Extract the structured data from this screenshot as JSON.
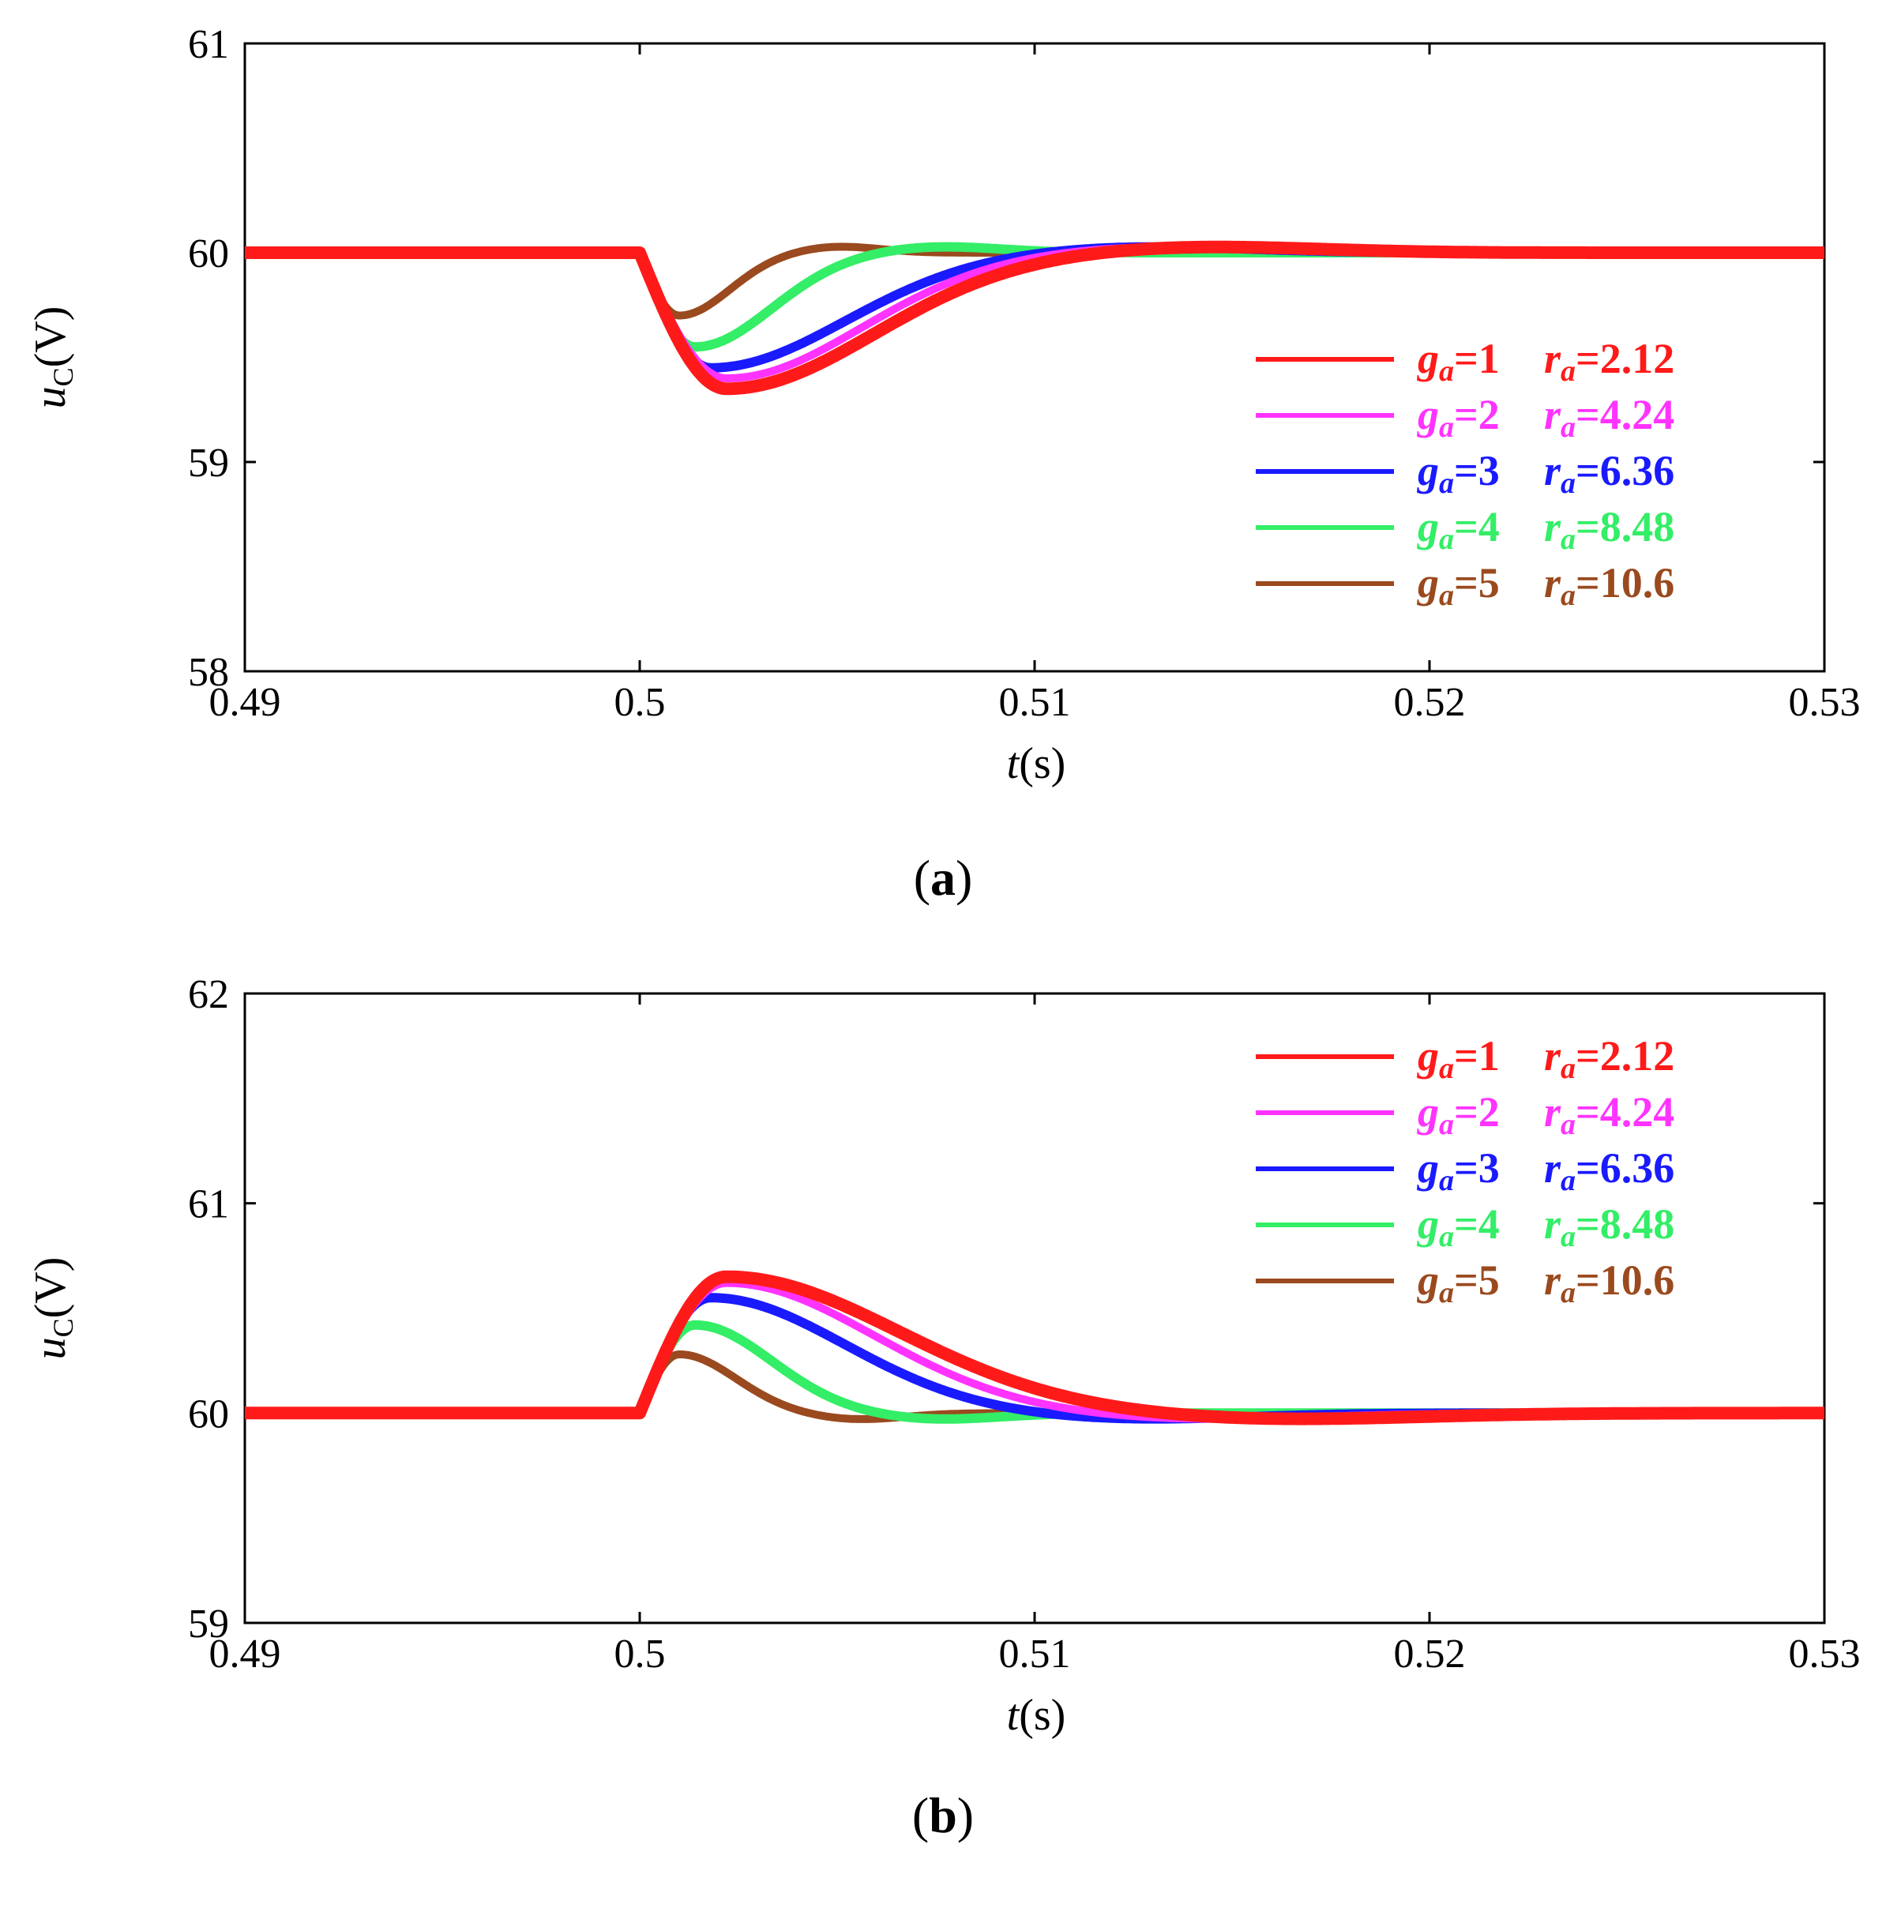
{
  "chart_data": [
    {
      "panel": "a",
      "caption_letter": "a",
      "type": "line",
      "xlabel_var": "t",
      "xlabel_unit": "(s)",
      "ylabel_var": "u",
      "ylabel_sub": "C",
      "ylabel_unit": "(V)",
      "xlim": [
        0.49,
        0.53
      ],
      "ylim": [
        58,
        61
      ],
      "xticks": [
        0.49,
        0.5,
        0.51,
        0.52,
        0.53
      ],
      "xtick_labels": [
        "0.49",
        "0.5",
        "0.51",
        "0.52",
        "0.53"
      ],
      "yticks": [
        58,
        59,
        60,
        61
      ],
      "ytick_labels": [
        "58",
        "59",
        "60",
        "61"
      ],
      "grid": false,
      "legend_position": "right-lower",
      "series": [
        {
          "name": "g_a=1 r_a=2.12",
          "g_label": "g",
          "g_sub": "a",
          "g_value": "=1",
          "r_label": "r",
          "r_sub": "a",
          "r_value": "=2.12",
          "color": "#ff1a1a",
          "steady": 60,
          "disturbance_time": 0.5,
          "peak_deviation": -0.65,
          "peak_time": 0.5022,
          "settle_time": 0.514
        },
        {
          "name": "g_a=2 r_a=4.24",
          "g_label": "g",
          "g_sub": "a",
          "g_value": "=2",
          "r_label": "r",
          "r_sub": "a",
          "r_value": "=4.24",
          "color": "#ff33ff",
          "steady": 60,
          "disturbance_time": 0.5,
          "peak_deviation": -0.6,
          "peak_time": 0.5022,
          "settle_time": 0.513
        },
        {
          "name": "g_a=3 r_a=6.36",
          "g_label": "g",
          "g_sub": "a",
          "g_value": "=3",
          "r_label": "r",
          "r_sub": "a",
          "r_value": "=6.36",
          "color": "#1a1aff",
          "steady": 60,
          "disturbance_time": 0.5,
          "peak_deviation": -0.55,
          "peak_time": 0.5018,
          "settle_time": 0.5125
        },
        {
          "name": "g_a=4 r_a=8.48",
          "g_label": "g",
          "g_sub": "a",
          "g_value": "=4",
          "r_label": "r",
          "r_sub": "a",
          "r_value": "=8.48",
          "color": "#33ee66",
          "steady": 60,
          "disturbance_time": 0.5,
          "peak_deviation": -0.45,
          "peak_time": 0.5014,
          "settle_time": 0.5075
        },
        {
          "name": "g_a=5 r_a=10.6",
          "g_label": "g",
          "g_sub": "a",
          "g_value": "=5",
          "r_label": "r",
          "r_sub": "a",
          "r_value": "=10.6",
          "color": "#9a4a1e",
          "steady": 60,
          "disturbance_time": 0.5,
          "peak_deviation": -0.3,
          "peak_time": 0.501,
          "settle_time": 0.505
        }
      ]
    },
    {
      "panel": "b",
      "caption_letter": "b",
      "type": "line",
      "xlabel_var": "t",
      "xlabel_unit": "(s)",
      "ylabel_var": "u",
      "ylabel_sub": "C",
      "ylabel_unit": "(V)",
      "xlim": [
        0.49,
        0.53
      ],
      "ylim": [
        59,
        62
      ],
      "xticks": [
        0.49,
        0.5,
        0.51,
        0.52,
        0.53
      ],
      "xtick_labels": [
        "0.49",
        "0.5",
        "0.51",
        "0.52",
        "0.53"
      ],
      "yticks": [
        59,
        60,
        61,
        62
      ],
      "ytick_labels": [
        "59",
        "60",
        "61",
        "62"
      ],
      "grid": false,
      "legend_position": "top-right",
      "series": [
        {
          "name": "g_a=1 r_a=2.12",
          "g_label": "g",
          "g_sub": "a",
          "g_value": "=1",
          "r_label": "r",
          "r_sub": "a",
          "r_value": "=2.12",
          "color": "#ff1a1a",
          "steady": 60,
          "disturbance_time": 0.5,
          "peak_deviation": 0.65,
          "peak_time": 0.5022,
          "settle_time": 0.516
        },
        {
          "name": "g_a=2 r_a=4.24",
          "g_label": "g",
          "g_sub": "a",
          "g_value": "=2",
          "r_label": "r",
          "r_sub": "a",
          "r_value": "=4.24",
          "color": "#ff33ff",
          "steady": 60,
          "disturbance_time": 0.5,
          "peak_deviation": 0.62,
          "peak_time": 0.5022,
          "settle_time": 0.514
        },
        {
          "name": "g_a=3 r_a=6.36",
          "g_label": "g",
          "g_sub": "a",
          "g_value": "=3",
          "r_label": "r",
          "r_sub": "a",
          "r_value": "=6.36",
          "color": "#1a1aff",
          "steady": 60,
          "disturbance_time": 0.5,
          "peak_deviation": 0.55,
          "peak_time": 0.5018,
          "settle_time": 0.5125
        },
        {
          "name": "g_a=4 r_a=8.48",
          "g_label": "g",
          "g_sub": "a",
          "g_value": "=4",
          "r_label": "r",
          "r_sub": "a",
          "r_value": "=8.48",
          "color": "#33ee66",
          "steady": 60,
          "disturbance_time": 0.5,
          "peak_deviation": 0.42,
          "peak_time": 0.5014,
          "settle_time": 0.5075
        },
        {
          "name": "g_a=5 r_a=10.6",
          "g_label": "g",
          "g_sub": "a",
          "g_value": "=5",
          "r_label": "r",
          "r_sub": "a",
          "r_value": "=10.6",
          "color": "#9a4a1e",
          "steady": 60,
          "disturbance_time": 0.5,
          "peak_deviation": 0.28,
          "peak_time": 0.501,
          "settle_time": 0.5055
        }
      ]
    }
  ]
}
